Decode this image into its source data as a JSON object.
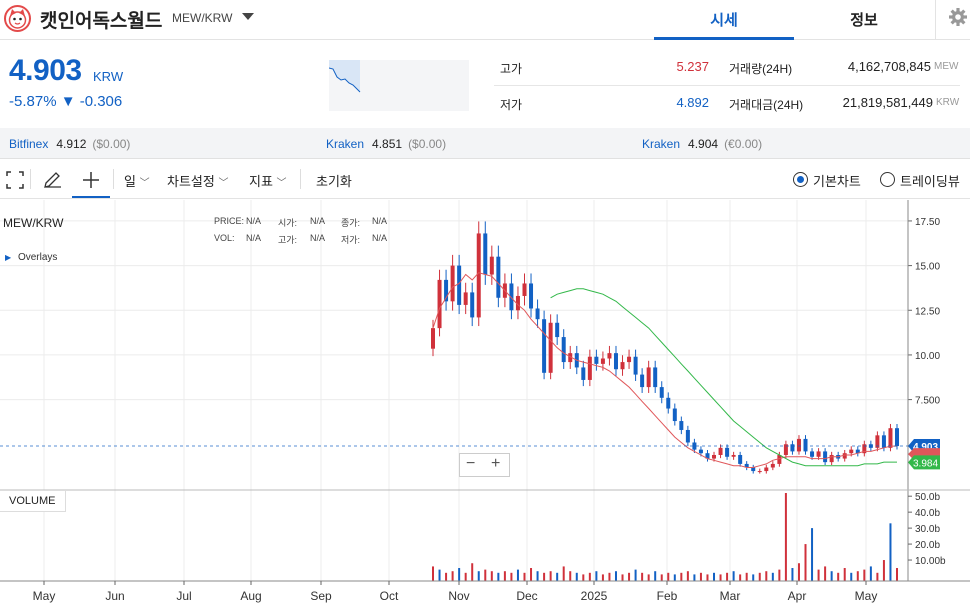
{
  "header": {
    "coin_name": "캣인어독스월드",
    "pair": "MEW/KRW",
    "tab_price": "시세",
    "tab_info": "정보"
  },
  "price": {
    "value": "4.903",
    "currency": "KRW",
    "change": "-5.87% ▼ -0.306"
  },
  "stats": {
    "high_label": "고가",
    "high_value": "5.237",
    "low_label": "저가",
    "low_value": "4.892",
    "volume_label": "거래량(24H)",
    "volume_value": "4,162,708,845",
    "volume_unit": "MEW",
    "amount_label": "거래대금(24H)",
    "amount_value": "21,819,581,449",
    "amount_unit": "KRW"
  },
  "exchanges": [
    {
      "name": "Bitfinex",
      "price": "4.912",
      "change": "($0.00)"
    },
    {
      "name": "Kraken",
      "price": "4.851",
      "change": "($0.00)"
    },
    {
      "name": "Kraken",
      "price": "4.904",
      "change": "(€0.00)"
    }
  ],
  "toolbar": {
    "interval": "일",
    "chart_settings": "차트설정",
    "indicators": "지표",
    "reset": "초기화",
    "basic_chart": "기본차트",
    "tradingview": "트레이딩뷰"
  },
  "legend": {
    "symbol": "MEW/KRW",
    "overlays": "Overlays",
    "price_label": "PRICE:",
    "price_val": "N/A",
    "open_label": "시가:",
    "open_val": "N/A",
    "close_label": "종가:",
    "close_val": "N/A",
    "vol_label": "VOL:",
    "vol_val": "N/A",
    "high_label": "고가:",
    "high_val": "N/A",
    "low_label": "저가:",
    "low_val": "N/A"
  },
  "volume_label": "VOLUME",
  "colors": {
    "accent": "#1261c4",
    "up": "#d0313b",
    "down": "#1261c4",
    "ma_short": "#e0575a",
    "ma_long": "#33b84a"
  },
  "chart_data": {
    "type": "line",
    "price_axis_ticks": [
      "17.50",
      "15.00",
      "12.50",
      "10.00",
      "7.500",
      "4.903",
      "3.984"
    ],
    "volume_axis_ticks": [
      "50.0b",
      "40.0b",
      "30.0b",
      "20.0b",
      "10.00b"
    ],
    "x_ticks": [
      "May",
      "Jun",
      "Jul",
      "Aug",
      "Sep",
      "Oct",
      "Nov",
      "Dec",
      "2025",
      "Feb",
      "Mar",
      "Apr",
      "May"
    ],
    "last_price": 4.903,
    "ma_last": 3.984,
    "ylim": [
      3,
      18
    ],
    "series": [
      {
        "values": [
          11.5,
          14.2,
          13.0,
          15.0,
          12.8,
          13.5,
          12.1,
          16.8,
          14.5,
          15.5,
          13.2,
          14.0,
          12.5,
          13.3,
          14.0,
          12.6,
          12.0,
          9.0,
          11.8,
          11.0,
          9.6,
          10.1,
          9.3,
          8.6,
          9.9,
          9.5,
          9.8,
          10.1,
          9.2,
          9.6,
          9.9,
          8.9,
          8.2,
          9.3,
          8.2,
          7.6,
          7.0,
          6.3,
          5.8,
          5.1,
          4.7,
          4.5,
          4.2,
          4.4,
          4.8,
          4.3,
          4.4,
          3.9,
          3.7,
          3.5,
          3.5,
          3.7,
          3.9,
          4.4,
          5.0,
          4.6,
          5.3,
          4.6,
          4.3,
          4.6,
          4.0,
          4.4,
          4.2,
          4.5,
          4.7,
          4.5,
          5.0,
          4.8,
          5.5,
          4.8,
          5.9,
          4.9
        ]
      },
      {
        "values": [
          11.5,
          12.6,
          13.2,
          13.8,
          14.0,
          14.5,
          14.2,
          14.6,
          14.5,
          14.4,
          14.0,
          13.6,
          13.2,
          12.8,
          12.5,
          12.0,
          11.6,
          11.2,
          10.8,
          10.4,
          10.1,
          9.9,
          9.7,
          9.6,
          9.5,
          9.4,
          9.3,
          9.1,
          8.8,
          8.5,
          8.2,
          7.8,
          7.4,
          7.0,
          6.6,
          6.2,
          5.8,
          5.4,
          5.1,
          4.8,
          4.6,
          4.4,
          4.2,
          4.1,
          4.0,
          3.9,
          3.8,
          3.8,
          3.7,
          3.7,
          3.8,
          3.9,
          4.1,
          4.2,
          4.3,
          4.3,
          4.3,
          4.3,
          4.2,
          4.2,
          4.2,
          4.3,
          4.3,
          4.4,
          4.4,
          4.5,
          4.6,
          4.6,
          4.7,
          4.8,
          4.9,
          4.9
        ]
      },
      {
        "values": [
          13.2,
          13.4,
          13.5,
          13.6,
          13.7,
          13.7,
          13.6,
          13.5,
          13.4,
          13.2,
          13.0,
          12.7,
          12.4,
          12.1,
          11.8,
          11.5,
          11.1,
          10.7,
          10.3,
          9.9,
          9.5,
          9.1,
          8.7,
          8.3,
          7.9,
          7.5,
          7.1,
          6.7,
          6.3,
          6.0,
          5.7,
          5.4,
          5.1,
          4.8,
          4.6,
          4.4,
          4.2,
          4.0,
          3.9,
          3.8,
          3.8,
          3.8,
          3.8,
          3.8,
          3.8,
          3.8,
          3.8,
          3.8,
          3.9,
          3.9,
          3.9,
          4.0,
          4.0,
          4.0
        ]
      }
    ],
    "volumes": [
      6,
      4,
      2,
      3,
      5,
      2,
      8,
      3,
      4,
      3,
      2,
      3,
      2,
      4,
      2,
      5,
      3,
      2,
      3,
      2,
      6,
      3,
      2,
      1,
      2,
      3,
      1,
      2,
      3,
      1,
      2,
      4,
      2,
      1,
      3,
      1,
      2,
      1,
      2,
      3,
      1,
      2,
      1,
      2,
      1,
      2,
      3,
      1,
      2,
      1,
      2,
      3,
      2,
      4,
      52,
      5,
      8,
      20,
      30,
      4,
      6,
      3,
      2,
      5,
      2,
      3,
      4,
      6,
      2,
      10,
      33,
      5
    ]
  }
}
